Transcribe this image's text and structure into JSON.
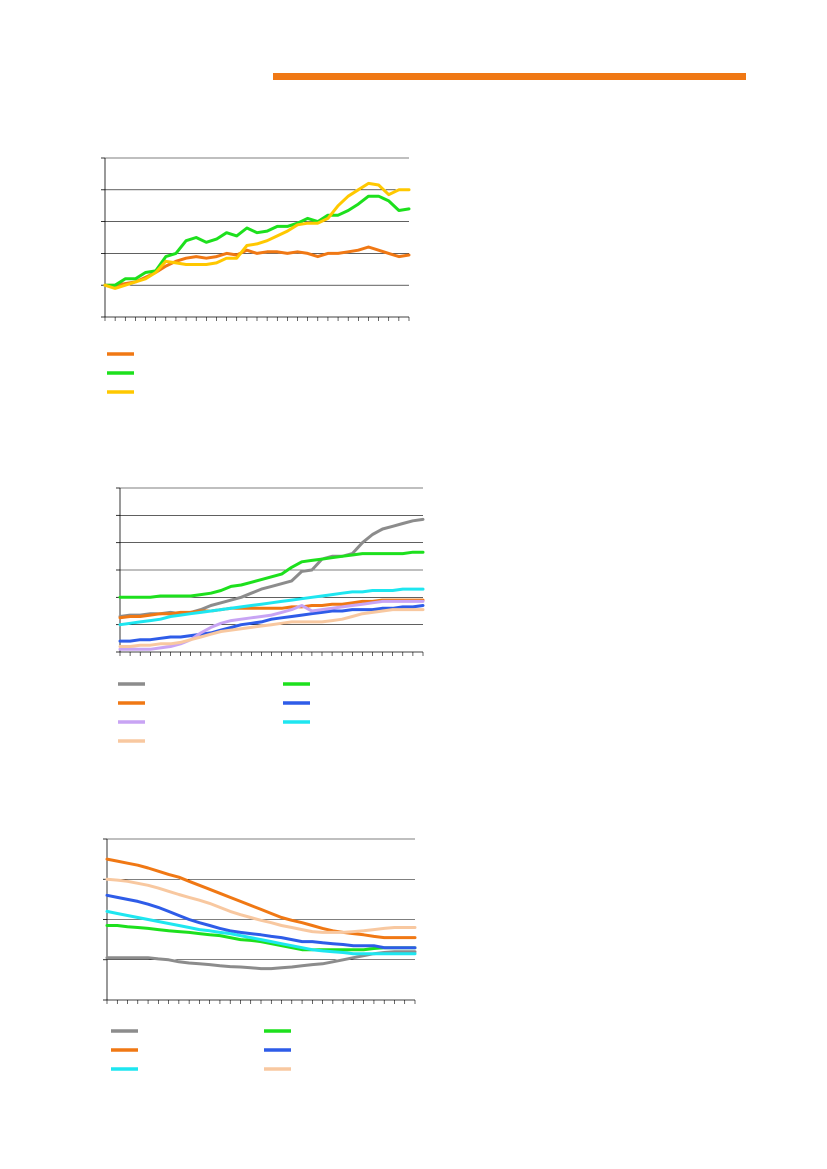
{
  "header": {
    "bar_color": "#f07814"
  },
  "chart_data": [
    {
      "type": "line",
      "title": "",
      "xlabel": "",
      "ylabel": "",
      "ylim": [
        0,
        5
      ],
      "grid": true,
      "legend": "bottom-left",
      "x_count": 31,
      "series": [
        {
          "name": "",
          "color": "#f07814",
          "values": [
            1.0,
            1.0,
            1.05,
            1.1,
            1.25,
            1.4,
            1.6,
            1.75,
            1.85,
            1.9,
            1.85,
            1.9,
            2.0,
            1.95,
            2.1,
            2.0,
            2.05,
            2.05,
            2.0,
            2.05,
            2.0,
            1.9,
            2.0,
            2.0,
            2.05,
            2.1,
            2.2,
            2.1,
            2.0,
            1.9,
            1.95
          ]
        },
        {
          "name": "",
          "color": "#1de01d",
          "values": [
            1.0,
            1.0,
            1.2,
            1.2,
            1.4,
            1.45,
            1.9,
            2.0,
            2.4,
            2.5,
            2.35,
            2.45,
            2.65,
            2.55,
            2.8,
            2.65,
            2.7,
            2.85,
            2.85,
            2.95,
            3.1,
            3.0,
            3.2,
            3.2,
            3.35,
            3.55,
            3.8,
            3.8,
            3.65,
            3.35,
            3.4
          ]
        },
        {
          "name": "",
          "color": "#ffc800",
          "values": [
            1.0,
            0.9,
            1.0,
            1.1,
            1.2,
            1.4,
            1.75,
            1.7,
            1.65,
            1.65,
            1.65,
            1.7,
            1.85,
            1.85,
            2.25,
            2.3,
            2.4,
            2.55,
            2.7,
            2.9,
            2.95,
            2.95,
            3.1,
            3.5,
            3.8,
            4.0,
            4.2,
            4.15,
            3.85,
            4.0,
            4.0
          ]
        }
      ]
    },
    {
      "type": "line",
      "title": "",
      "xlabel": "",
      "ylabel": "",
      "ylim": [
        0,
        6
      ],
      "grid": true,
      "legend": "bottom-two-columns",
      "x_count": 31,
      "series": [
        {
          "name": "",
          "color": "#8c8c8c",
          "column": 0,
          "values": [
            1.3,
            1.35,
            1.35,
            1.4,
            1.4,
            1.45,
            1.4,
            1.45,
            1.55,
            1.7,
            1.8,
            1.9,
            2.0,
            2.15,
            2.3,
            2.4,
            2.5,
            2.6,
            2.95,
            3.0,
            3.4,
            3.5,
            3.5,
            3.6,
            4.0,
            4.3,
            4.5,
            4.6,
            4.7,
            4.8,
            4.85
          ]
        },
        {
          "name": "",
          "color": "#1de01d",
          "column": 1,
          "values": [
            2.0,
            2.0,
            2.0,
            2.0,
            2.05,
            2.05,
            2.05,
            2.05,
            2.1,
            2.15,
            2.25,
            2.4,
            2.45,
            2.55,
            2.65,
            2.75,
            2.85,
            3.1,
            3.3,
            3.35,
            3.4,
            3.45,
            3.5,
            3.55,
            3.6,
            3.6,
            3.6,
            3.6,
            3.6,
            3.65,
            3.65
          ]
        },
        {
          "name": "",
          "color": "#f07814",
          "column": 0,
          "values": [
            1.25,
            1.3,
            1.3,
            1.35,
            1.4,
            1.4,
            1.45,
            1.45,
            1.5,
            1.5,
            1.55,
            1.6,
            1.6,
            1.6,
            1.6,
            1.6,
            1.6,
            1.65,
            1.65,
            1.7,
            1.7,
            1.75,
            1.75,
            1.8,
            1.85,
            1.85,
            1.9,
            1.9,
            1.9,
            1.9,
            1.9
          ]
        },
        {
          "name": "",
          "color": "#2e5ce8",
          "column": 1,
          "values": [
            0.4,
            0.4,
            0.45,
            0.45,
            0.5,
            0.55,
            0.55,
            0.6,
            0.65,
            0.7,
            0.8,
            0.9,
            1.0,
            1.05,
            1.1,
            1.2,
            1.25,
            1.3,
            1.35,
            1.4,
            1.45,
            1.5,
            1.5,
            1.55,
            1.55,
            1.55,
            1.6,
            1.6,
            1.65,
            1.65,
            1.7
          ]
        },
        {
          "name": "",
          "color": "#c8a4f4",
          "column": 0,
          "values": [
            0.1,
            0.1,
            0.1,
            0.1,
            0.15,
            0.2,
            0.3,
            0.45,
            0.7,
            0.9,
            1.05,
            1.15,
            1.2,
            1.25,
            1.3,
            1.35,
            1.45,
            1.55,
            1.7,
            1.5,
            1.55,
            1.6,
            1.65,
            1.7,
            1.75,
            1.8,
            1.85,
            1.85,
            1.85,
            1.85,
            1.85
          ]
        },
        {
          "name": "",
          "color": "#1ee6f0",
          "column": 1,
          "values": [
            1.0,
            1.05,
            1.1,
            1.15,
            1.2,
            1.3,
            1.35,
            1.4,
            1.45,
            1.5,
            1.55,
            1.6,
            1.65,
            1.7,
            1.75,
            1.8,
            1.85,
            1.9,
            1.95,
            2.0,
            2.05,
            2.1,
            2.15,
            2.2,
            2.2,
            2.25,
            2.25,
            2.25,
            2.3,
            2.3,
            2.3
          ]
        },
        {
          "name": "",
          "color": "#f8c8a0",
          "column": 0,
          "values": [
            0.2,
            0.2,
            0.25,
            0.25,
            0.3,
            0.3,
            0.35,
            0.45,
            0.55,
            0.65,
            0.75,
            0.8,
            0.85,
            0.9,
            0.95,
            1.0,
            1.05,
            1.1,
            1.1,
            1.1,
            1.1,
            1.15,
            1.2,
            1.3,
            1.4,
            1.45,
            1.5,
            1.55,
            1.55,
            1.55,
            1.55
          ]
        }
      ]
    },
    {
      "type": "line",
      "title": "",
      "xlabel": "",
      "ylabel": "",
      "ylim": [
        0,
        4
      ],
      "grid": true,
      "legend": "bottom-two-columns",
      "x_count": 31,
      "series": [
        {
          "name": "",
          "color": "#8c8c8c",
          "column": 0,
          "values": [
            1.05,
            1.05,
            1.05,
            1.05,
            1.05,
            1.02,
            1.0,
            0.95,
            0.92,
            0.9,
            0.88,
            0.85,
            0.83,
            0.82,
            0.8,
            0.78,
            0.78,
            0.8,
            0.82,
            0.85,
            0.88,
            0.9,
            0.95,
            1.0,
            1.05,
            1.1,
            1.15,
            1.18,
            1.2,
            1.2,
            1.2
          ]
        },
        {
          "name": "",
          "color": "#1de01d",
          "column": 1,
          "values": [
            1.85,
            1.85,
            1.82,
            1.8,
            1.78,
            1.75,
            1.72,
            1.7,
            1.68,
            1.65,
            1.62,
            1.6,
            1.55,
            1.5,
            1.48,
            1.45,
            1.4,
            1.35,
            1.3,
            1.25,
            1.25,
            1.25,
            1.25,
            1.25,
            1.25,
            1.25,
            1.28,
            1.3,
            1.3,
            1.3,
            1.3
          ]
        },
        {
          "name": "",
          "color": "#f07814",
          "column": 0,
          "values": [
            3.5,
            3.45,
            3.4,
            3.35,
            3.28,
            3.2,
            3.12,
            3.05,
            2.95,
            2.85,
            2.75,
            2.65,
            2.55,
            2.45,
            2.35,
            2.25,
            2.15,
            2.05,
            1.98,
            1.92,
            1.85,
            1.78,
            1.72,
            1.68,
            1.65,
            1.62,
            1.58,
            1.55,
            1.55,
            1.55,
            1.55
          ]
        },
        {
          "name": "",
          "color": "#2e5ce8",
          "column": 1,
          "values": [
            2.6,
            2.55,
            2.5,
            2.45,
            2.38,
            2.3,
            2.2,
            2.1,
            2.0,
            1.92,
            1.85,
            1.78,
            1.72,
            1.68,
            1.65,
            1.62,
            1.58,
            1.55,
            1.5,
            1.45,
            1.45,
            1.42,
            1.4,
            1.38,
            1.35,
            1.35,
            1.35,
            1.3,
            1.3,
            1.3,
            1.3
          ]
        },
        {
          "name": "",
          "color": "#1ee6f0",
          "column": 0,
          "values": [
            2.2,
            2.15,
            2.1,
            2.05,
            2.0,
            1.95,
            1.9,
            1.85,
            1.8,
            1.75,
            1.72,
            1.68,
            1.65,
            1.6,
            1.55,
            1.5,
            1.45,
            1.4,
            1.35,
            1.3,
            1.25,
            1.22,
            1.2,
            1.18,
            1.15,
            1.15,
            1.15,
            1.15,
            1.15,
            1.15,
            1.15
          ]
        },
        {
          "name": "",
          "color": "#f8c8a0",
          "column": 1,
          "values": [
            3.0,
            2.98,
            2.95,
            2.9,
            2.85,
            2.78,
            2.7,
            2.62,
            2.55,
            2.48,
            2.4,
            2.3,
            2.2,
            2.12,
            2.05,
            1.98,
            1.92,
            1.85,
            1.8,
            1.75,
            1.7,
            1.68,
            1.68,
            1.68,
            1.7,
            1.72,
            1.75,
            1.78,
            1.8,
            1.8,
            1.8
          ]
        }
      ]
    }
  ]
}
